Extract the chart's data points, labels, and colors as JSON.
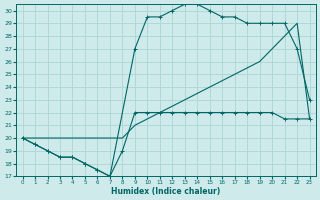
{
  "xlabel": "Humidex (Indice chaleur)",
  "bg_color": "#ceeaea",
  "grid_color": "#b0d8d8",
  "line_color": "#006666",
  "xlim": [
    -0.5,
    23.5
  ],
  "ylim": [
    17,
    30.5
  ],
  "xticks": [
    0,
    1,
    2,
    3,
    4,
    5,
    6,
    7,
    8,
    9,
    10,
    11,
    12,
    13,
    14,
    15,
    16,
    17,
    18,
    19,
    20,
    21,
    22,
    23
  ],
  "yticks": [
    17,
    18,
    19,
    20,
    21,
    22,
    23,
    24,
    25,
    26,
    27,
    28,
    29,
    30
  ],
  "line1_x": [
    0,
    1,
    2,
    3,
    4,
    5,
    6,
    7,
    8,
    9,
    10,
    11,
    12,
    13,
    14,
    15,
    16,
    17,
    18,
    19,
    20,
    21,
    22,
    23
  ],
  "line1_y": [
    20,
    19.5,
    19,
    18.5,
    18.5,
    18,
    17.5,
    17,
    19,
    22,
    22,
    22,
    22,
    22,
    22,
    22,
    22,
    22,
    22,
    22,
    22,
    21.5,
    21.5,
    21.5
  ],
  "line2_x": [
    0,
    1,
    2,
    3,
    4,
    5,
    6,
    7,
    9,
    10,
    11,
    12,
    13,
    14,
    15,
    16,
    17,
    18,
    19,
    20,
    21,
    22,
    23
  ],
  "line2_y": [
    20,
    19.5,
    19,
    18.5,
    18.5,
    18,
    17.5,
    17,
    27,
    29.5,
    29.5,
    30,
    30.5,
    30.5,
    30,
    29.5,
    29.5,
    29,
    29,
    29,
    29,
    27,
    23
  ],
  "line3_x": [
    0,
    1,
    2,
    3,
    4,
    5,
    6,
    7,
    8,
    9,
    10,
    11,
    12,
    13,
    14,
    15,
    16,
    17,
    18,
    19,
    20,
    21,
    22,
    23
  ],
  "line3_y": [
    20,
    20,
    20,
    20,
    20,
    20,
    20,
    20,
    20,
    21,
    21.5,
    22,
    22.5,
    23,
    23.5,
    24,
    24.5,
    25,
    25.5,
    26,
    27,
    28,
    29,
    21.5
  ]
}
